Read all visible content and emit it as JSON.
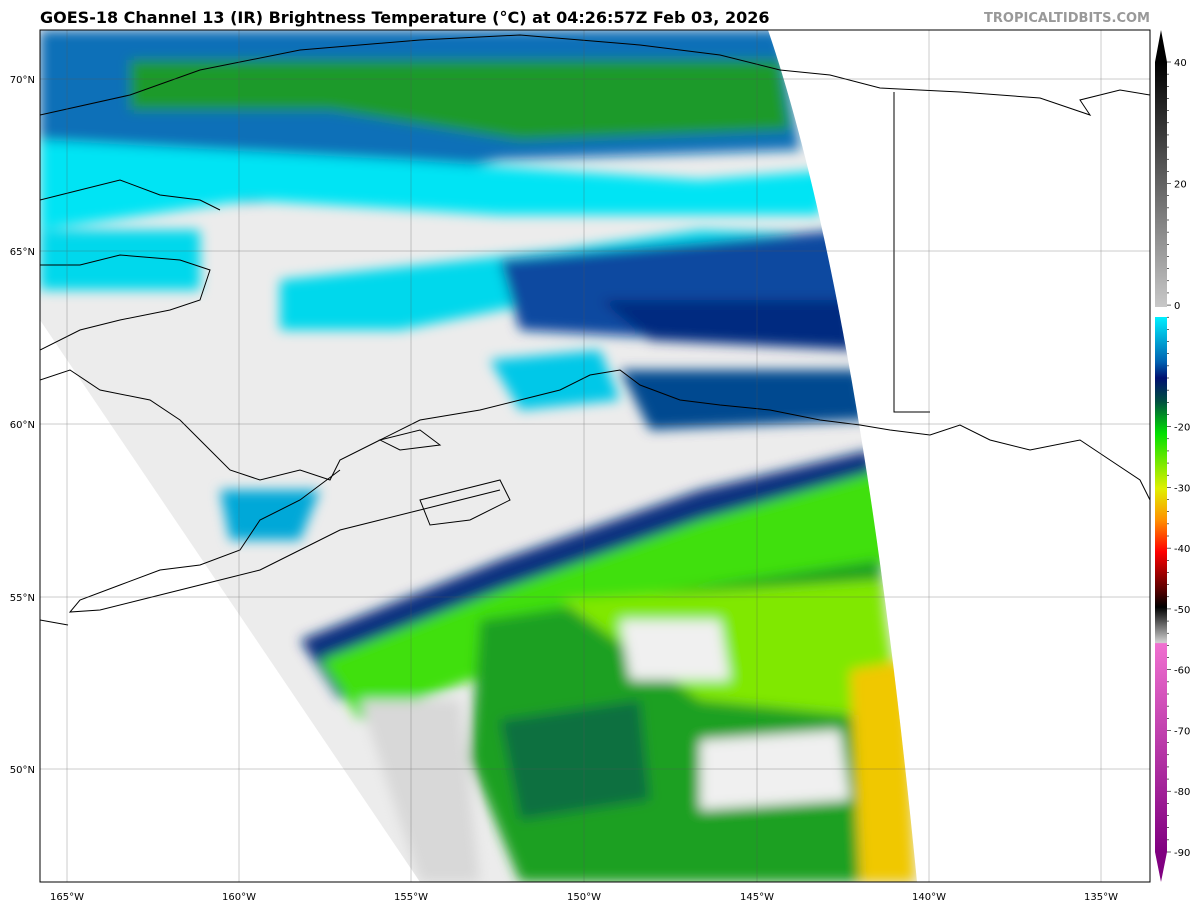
{
  "header": {
    "title": "GOES-18 Channel 13 (IR) Brightness Temperature (°C) at 04:26:57Z Feb 03, 2026",
    "brand": "TROPICALTIDBITS.COM"
  },
  "map": {
    "satellite": "GOES-18",
    "channel": "Channel 13 (IR)",
    "lat_labels": [
      "70°N",
      "65°N",
      "60°N",
      "55°N",
      "50°N"
    ],
    "lon_labels": [
      "165°W",
      "160°W",
      "155°W",
      "150°W",
      "145°W",
      "140°W",
      "135°W"
    ],
    "grid": true,
    "extent": {
      "lon": [
        -165.8,
        -133.7
      ],
      "lat": [
        46.7,
        71.4
      ]
    }
  },
  "colorbar": {
    "ticks": [
      "40",
      "20",
      "0",
      "-20",
      "-30",
      "-40",
      "-50",
      "-60",
      "-70",
      "-80",
      "-90"
    ],
    "range": [
      -90,
      40
    ],
    "colors": {
      "warm": "#000000",
      "neutral": "#ffffff",
      "cold_cyan": "#00f0ff",
      "navy": "#001070",
      "green": "#00e000",
      "yellow": "#e8f000",
      "orange": "#ff7000",
      "red": "#ff0000",
      "pink": "#f070d0",
      "purple": "#800080"
    }
  }
}
